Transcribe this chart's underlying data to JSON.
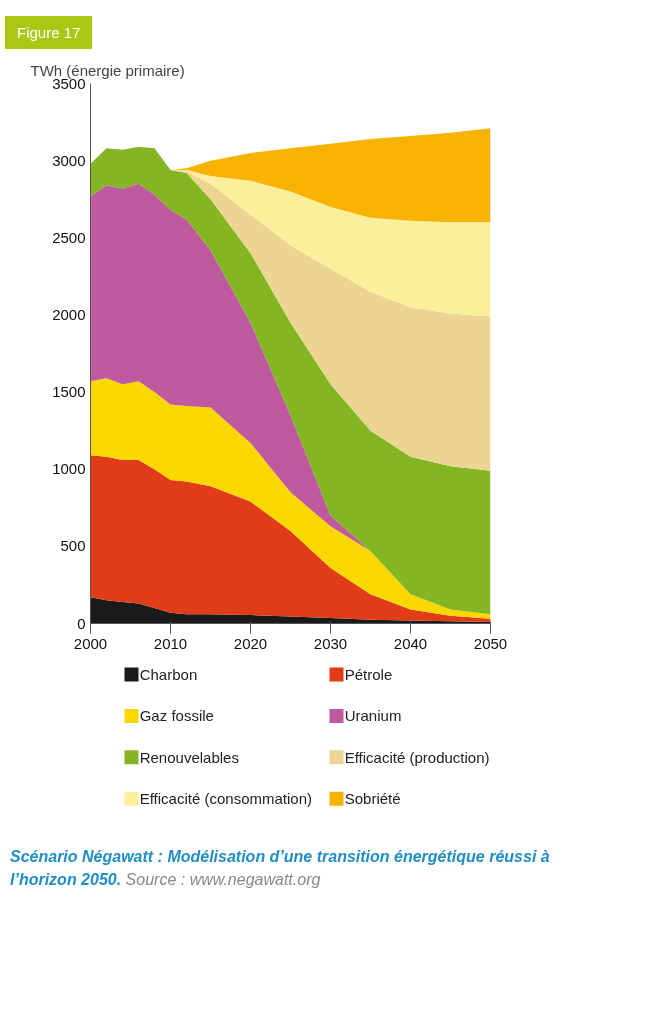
{
  "chart_data": {
    "type": "area",
    "stacked": true,
    "title": "Figure 17",
    "ylabel": "TWh (énergie primaire)",
    "x": [
      2000,
      2002,
      2004,
      2006,
      2008,
      2010,
      2012,
      2015,
      2020,
      2025,
      2030,
      2035,
      2040,
      2045,
      2050
    ],
    "xlim": [
      2000,
      2050
    ],
    "xticks": [
      2000,
      2010,
      2020,
      2030,
      2040,
      2050
    ],
    "ylim": [
      0,
      3500
    ],
    "yticks": [
      0,
      500,
      1000,
      1500,
      2000,
      2500,
      3000,
      3500
    ],
    "grid": false,
    "legend": "bottom",
    "series": [
      {
        "name": "Charbon",
        "color": "#1a1a1a",
        "values": [
          170,
          150,
          140,
          130,
          100,
          70,
          60,
          60,
          55,
          45,
          35,
          25,
          20,
          15,
          10
        ]
      },
      {
        "name": "Pétrole",
        "color": "#e03c17",
        "values": [
          920,
          930,
          920,
          930,
          900,
          860,
          860,
          830,
          735,
          555,
          325,
          165,
          70,
          35,
          20
        ]
      },
      {
        "name": "Gaz fossile",
        "color": "#f9d800",
        "values": [
          480,
          510,
          490,
          510,
          500,
          490,
          490,
          510,
          380,
          250,
          270,
          280,
          100,
          40,
          30
        ]
      },
      {
        "name": "Uranium",
        "color": "#c05a9e",
        "values": [
          1200,
          1250,
          1270,
          1280,
          1280,
          1260,
          1210,
          1020,
          780,
          500,
          70,
          0,
          0,
          0,
          0
        ]
      },
      {
        "name": "Renouvelables",
        "color": "#84b523",
        "values": [
          210,
          240,
          250,
          240,
          300,
          260,
          300,
          330,
          450,
          600,
          850,
          780,
          890,
          930,
          930
        ]
      },
      {
        "name": "Efficacité (production)",
        "color": "#ecd491",
        "values": [
          0,
          0,
          0,
          0,
          0,
          0,
          10,
          100,
          250,
          500,
          750,
          900,
          970,
          990,
          1000
        ]
      },
      {
        "name": "Efficacité (consommation)",
        "color": "#fcef9c",
        "values": [
          0,
          0,
          0,
          0,
          0,
          0,
          10,
          50,
          220,
          350,
          400,
          480,
          560,
          590,
          610
        ]
      },
      {
        "name": "Sobriété",
        "color": "#f8b200",
        "values": [
          0,
          0,
          0,
          0,
          0,
          0,
          10,
          100,
          180,
          280,
          410,
          510,
          550,
          580,
          610
        ]
      }
    ],
    "annotations": [
      "Scénario Négawatt : Modélisation d’une transition énergétique réussi à l’horizon 2050.",
      "Source : www.negawatt.org"
    ]
  }
}
